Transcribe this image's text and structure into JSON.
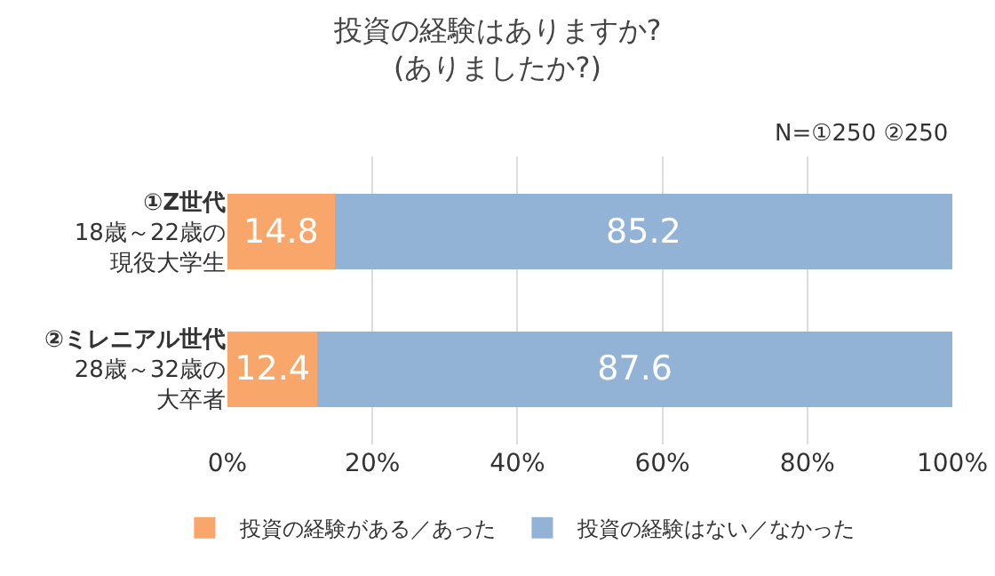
{
  "chart_data": {
    "type": "bar",
    "orientation": "horizontal",
    "stacked": true,
    "title": "投資の経験はありますか?\n(ありましたか?)",
    "annotations": [
      "N=①250 ②250"
    ],
    "categories": [
      "①Z世代\n18歳～22歳の現役大学生",
      "②ミレニアル世代\n28歳～32歳の大卒者"
    ],
    "series": [
      {
        "name": "投資の経験がある／あった",
        "color": "#f9a66a",
        "values": [
          14.8,
          12.4
        ]
      },
      {
        "name": "投資の経験はない／なかった",
        "color": "#93b3d6",
        "values": [
          85.2,
          87.6
        ]
      }
    ],
    "xlim": [
      0,
      100
    ],
    "xticks": [
      {
        "value": 0,
        "label": "0%"
      },
      {
        "value": 20,
        "label": "20%"
      },
      {
        "value": 40,
        "label": "40%"
      },
      {
        "value": 60,
        "label": "60%"
      },
      {
        "value": 80,
        "label": "80%"
      },
      {
        "value": 100,
        "label": "100%"
      }
    ],
    "grid": "x",
    "legend": "bottom",
    "data_labels": true
  }
}
